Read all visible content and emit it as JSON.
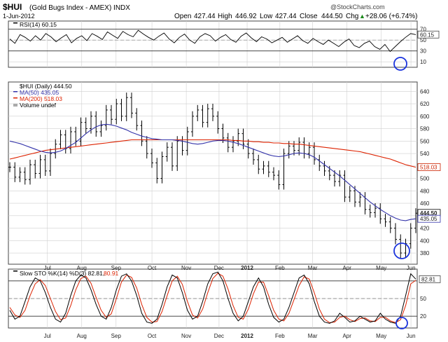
{
  "chart_data": {
    "type": "line",
    "header": {
      "symbol": "$HUI",
      "name": "(Gold Bugs Index - AMEX) INDX",
      "date": "1-Jun-2012",
      "source": "@StockCharts.com",
      "open_label": "Open",
      "open": "427.44",
      "high_label": "High",
      "high": "446.92",
      "low_label": "Low",
      "low": "427.44",
      "close_label": "Close",
      "close": "444.50",
      "chg_label": "Chg",
      "chg": "+28.06 (+6.74%)",
      "up_arrow": "▲"
    },
    "x_labels": [
      "Jul",
      "Aug",
      "Sep",
      "Oct",
      "Nov",
      "Dec",
      "2012",
      "Feb",
      "Mar",
      "Apr",
      "May",
      "Jun"
    ],
    "x_positions": [
      1.25,
      2.35,
      3.45,
      4.6,
      5.7,
      6.75,
      7.65,
      8.7,
      9.75,
      10.85,
      11.95,
      12.9
    ],
    "x_range": [
      0,
      13.1
    ],
    "rsi": {
      "legend": "RSI(14) 60.15",
      "last": 60.15,
      "last_label": "60.15",
      "ylim": [
        0,
        85
      ],
      "ticks": [
        10,
        30,
        50,
        70,
        90
      ],
      "tick_labels": [
        "10",
        "30",
        "50",
        "70",
        "90"
      ],
      "lines": [
        70,
        30
      ],
      "midline": 50,
      "values": [
        52,
        44,
        60,
        55,
        48,
        58,
        50,
        62,
        56,
        47,
        54,
        60,
        45,
        53,
        58,
        49,
        62,
        57,
        51,
        65,
        59,
        53,
        66,
        60,
        56,
        68,
        61,
        55,
        50,
        57,
        63,
        52,
        45,
        55,
        61,
        50,
        44,
        56,
        62,
        58,
        48,
        55,
        60,
        51,
        46,
        57,
        63,
        54,
        47,
        56,
        52,
        45,
        50,
        55,
        46,
        52,
        58,
        49,
        44,
        53,
        47,
        42,
        50,
        44,
        38,
        46,
        52,
        40,
        36,
        44,
        48,
        38,
        33,
        42,
        29,
        38,
        47,
        55,
        62,
        60
      ]
    },
    "price": {
      "legend": "$HUI (Daily) 444.50",
      "ma50_legend": "MA(50) 435.05",
      "ma200_legend": "MA(200) 518.03",
      "volume_legend": "Volume undef",
      "ylim": [
        362,
        655
      ],
      "ticks": [
        380,
        400,
        420,
        440,
        460,
        480,
        500,
        520,
        540,
        560,
        580,
        600,
        620,
        640
      ],
      "tick_labels": [
        "380",
        "400",
        "420",
        "440",
        "460",
        "480",
        "500",
        "520",
        "540",
        "560",
        "580",
        "600",
        "620",
        "640"
      ],
      "last": 444.5,
      "last_label": "444.50",
      "ma50_last": 435.05,
      "ma50_label": "435.05",
      "ma200_last": 518.03,
      "ma200_label": "518.03",
      "closes": [
        518,
        502,
        510,
        498,
        522,
        508,
        530,
        512,
        540,
        555,
        570,
        548,
        575,
        560,
        590,
        580,
        600,
        575,
        585,
        610,
        595,
        620,
        600,
        630,
        605,
        585,
        560,
        540,
        525,
        500,
        535,
        550,
        520,
        560,
        545,
        575,
        600,
        610,
        590,
        612,
        600,
        580,
        565,
        550,
        560,
        572,
        555,
        540,
        530,
        515,
        520,
        510,
        505,
        490,
        540,
        552,
        545,
        558,
        540,
        550,
        530,
        520,
        512,
        505,
        495,
        505,
        470,
        480,
        462,
        470,
        450,
        445,
        452,
        435,
        430,
        420,
        402,
        380,
        395,
        420,
        444
      ],
      "ma50": [
        560,
        558,
        556,
        553,
        550,
        547,
        544,
        542,
        541,
        542,
        544,
        548,
        553,
        558,
        565,
        572,
        578,
        583,
        586,
        587,
        586,
        584,
        581,
        578,
        574,
        571,
        568,
        566,
        564,
        563,
        562,
        562,
        562,
        561,
        560,
        558,
        556,
        555,
        556,
        558,
        560,
        561,
        561,
        560,
        558,
        556,
        553,
        550,
        547,
        544,
        541,
        538,
        536,
        535,
        536,
        538,
        540,
        541,
        540,
        538,
        534,
        528,
        522,
        516,
        510,
        504,
        497,
        490,
        483,
        476,
        469,
        462,
        456,
        450,
        445,
        440,
        436,
        433,
        432,
        434,
        435
      ],
      "ma200": [
        531,
        533,
        535,
        537,
        539,
        541,
        543,
        545,
        546,
        547,
        548,
        549,
        550,
        551,
        552,
        553,
        554,
        555,
        556,
        557,
        558,
        559,
        560,
        561,
        562,
        562,
        562,
        562,
        562,
        562,
        562,
        562,
        562,
        562,
        562,
        562,
        562,
        562,
        562,
        562,
        562,
        562,
        562,
        562,
        561,
        561,
        560,
        560,
        559,
        559,
        558,
        558,
        557,
        557,
        556,
        556,
        555,
        555,
        554,
        553,
        552,
        551,
        550,
        549,
        548,
        547,
        546,
        545,
        544,
        543,
        541,
        539,
        537,
        535,
        533,
        531,
        528,
        525,
        522,
        520,
        518
      ]
    },
    "sto": {
      "legend_a": "Slow STO %K(14) %D(3) 82.81,",
      "legend_b": "80.91",
      "last_k": 82.81,
      "last_label": "82.81",
      "ylim": [
        0,
        100
      ],
      "ticks": [
        20,
        50,
        80
      ],
      "tick_labels": [
        "20",
        "50",
        "80"
      ],
      "lines": [
        80,
        20
      ],
      "midline": 50,
      "k": [
        30,
        15,
        20,
        45,
        70,
        85,
        80,
        60,
        35,
        15,
        10,
        25,
        55,
        80,
        90,
        85,
        65,
        40,
        20,
        15,
        35,
        65,
        88,
        92,
        80,
        55,
        25,
        10,
        8,
        15,
        40,
        70,
        90,
        85,
        60,
        30,
        15,
        20,
        45,
        75,
        92,
        95,
        80,
        50,
        25,
        12,
        20,
        45,
        70,
        85,
        70,
        40,
        18,
        10,
        15,
        35,
        60,
        85,
        90,
        75,
        45,
        20,
        10,
        8,
        12,
        25,
        18,
        10,
        12,
        20,
        15,
        10,
        12,
        25,
        15,
        10,
        8,
        20,
        55,
        92,
        83
      ],
      "d": [
        35,
        22,
        18,
        30,
        55,
        75,
        82,
        72,
        50,
        28,
        14,
        17,
        38,
        65,
        84,
        88,
        76,
        52,
        30,
        18,
        24,
        50,
        78,
        90,
        86,
        68,
        40,
        18,
        10,
        11,
        28,
        55,
        80,
        88,
        74,
        45,
        22,
        17,
        32,
        60,
        84,
        93,
        88,
        66,
        38,
        18,
        15,
        32,
        58,
        78,
        78,
        55,
        30,
        15,
        12,
        25,
        48,
        72,
        87,
        83,
        60,
        32,
        15,
        9,
        10,
        18,
        20,
        14,
        11,
        16,
        17,
        12,
        11,
        18,
        18,
        12,
        9,
        14,
        38,
        75,
        81
      ]
    }
  },
  "colors": {
    "price_bar": "#000000",
    "ma50": "#3333aa",
    "ma200": "#dd2200",
    "sto_d": "#dd2200",
    "circle": "#1a33dd",
    "grid": "#cfcfcf",
    "ma200_box": "#cc2200"
  }
}
